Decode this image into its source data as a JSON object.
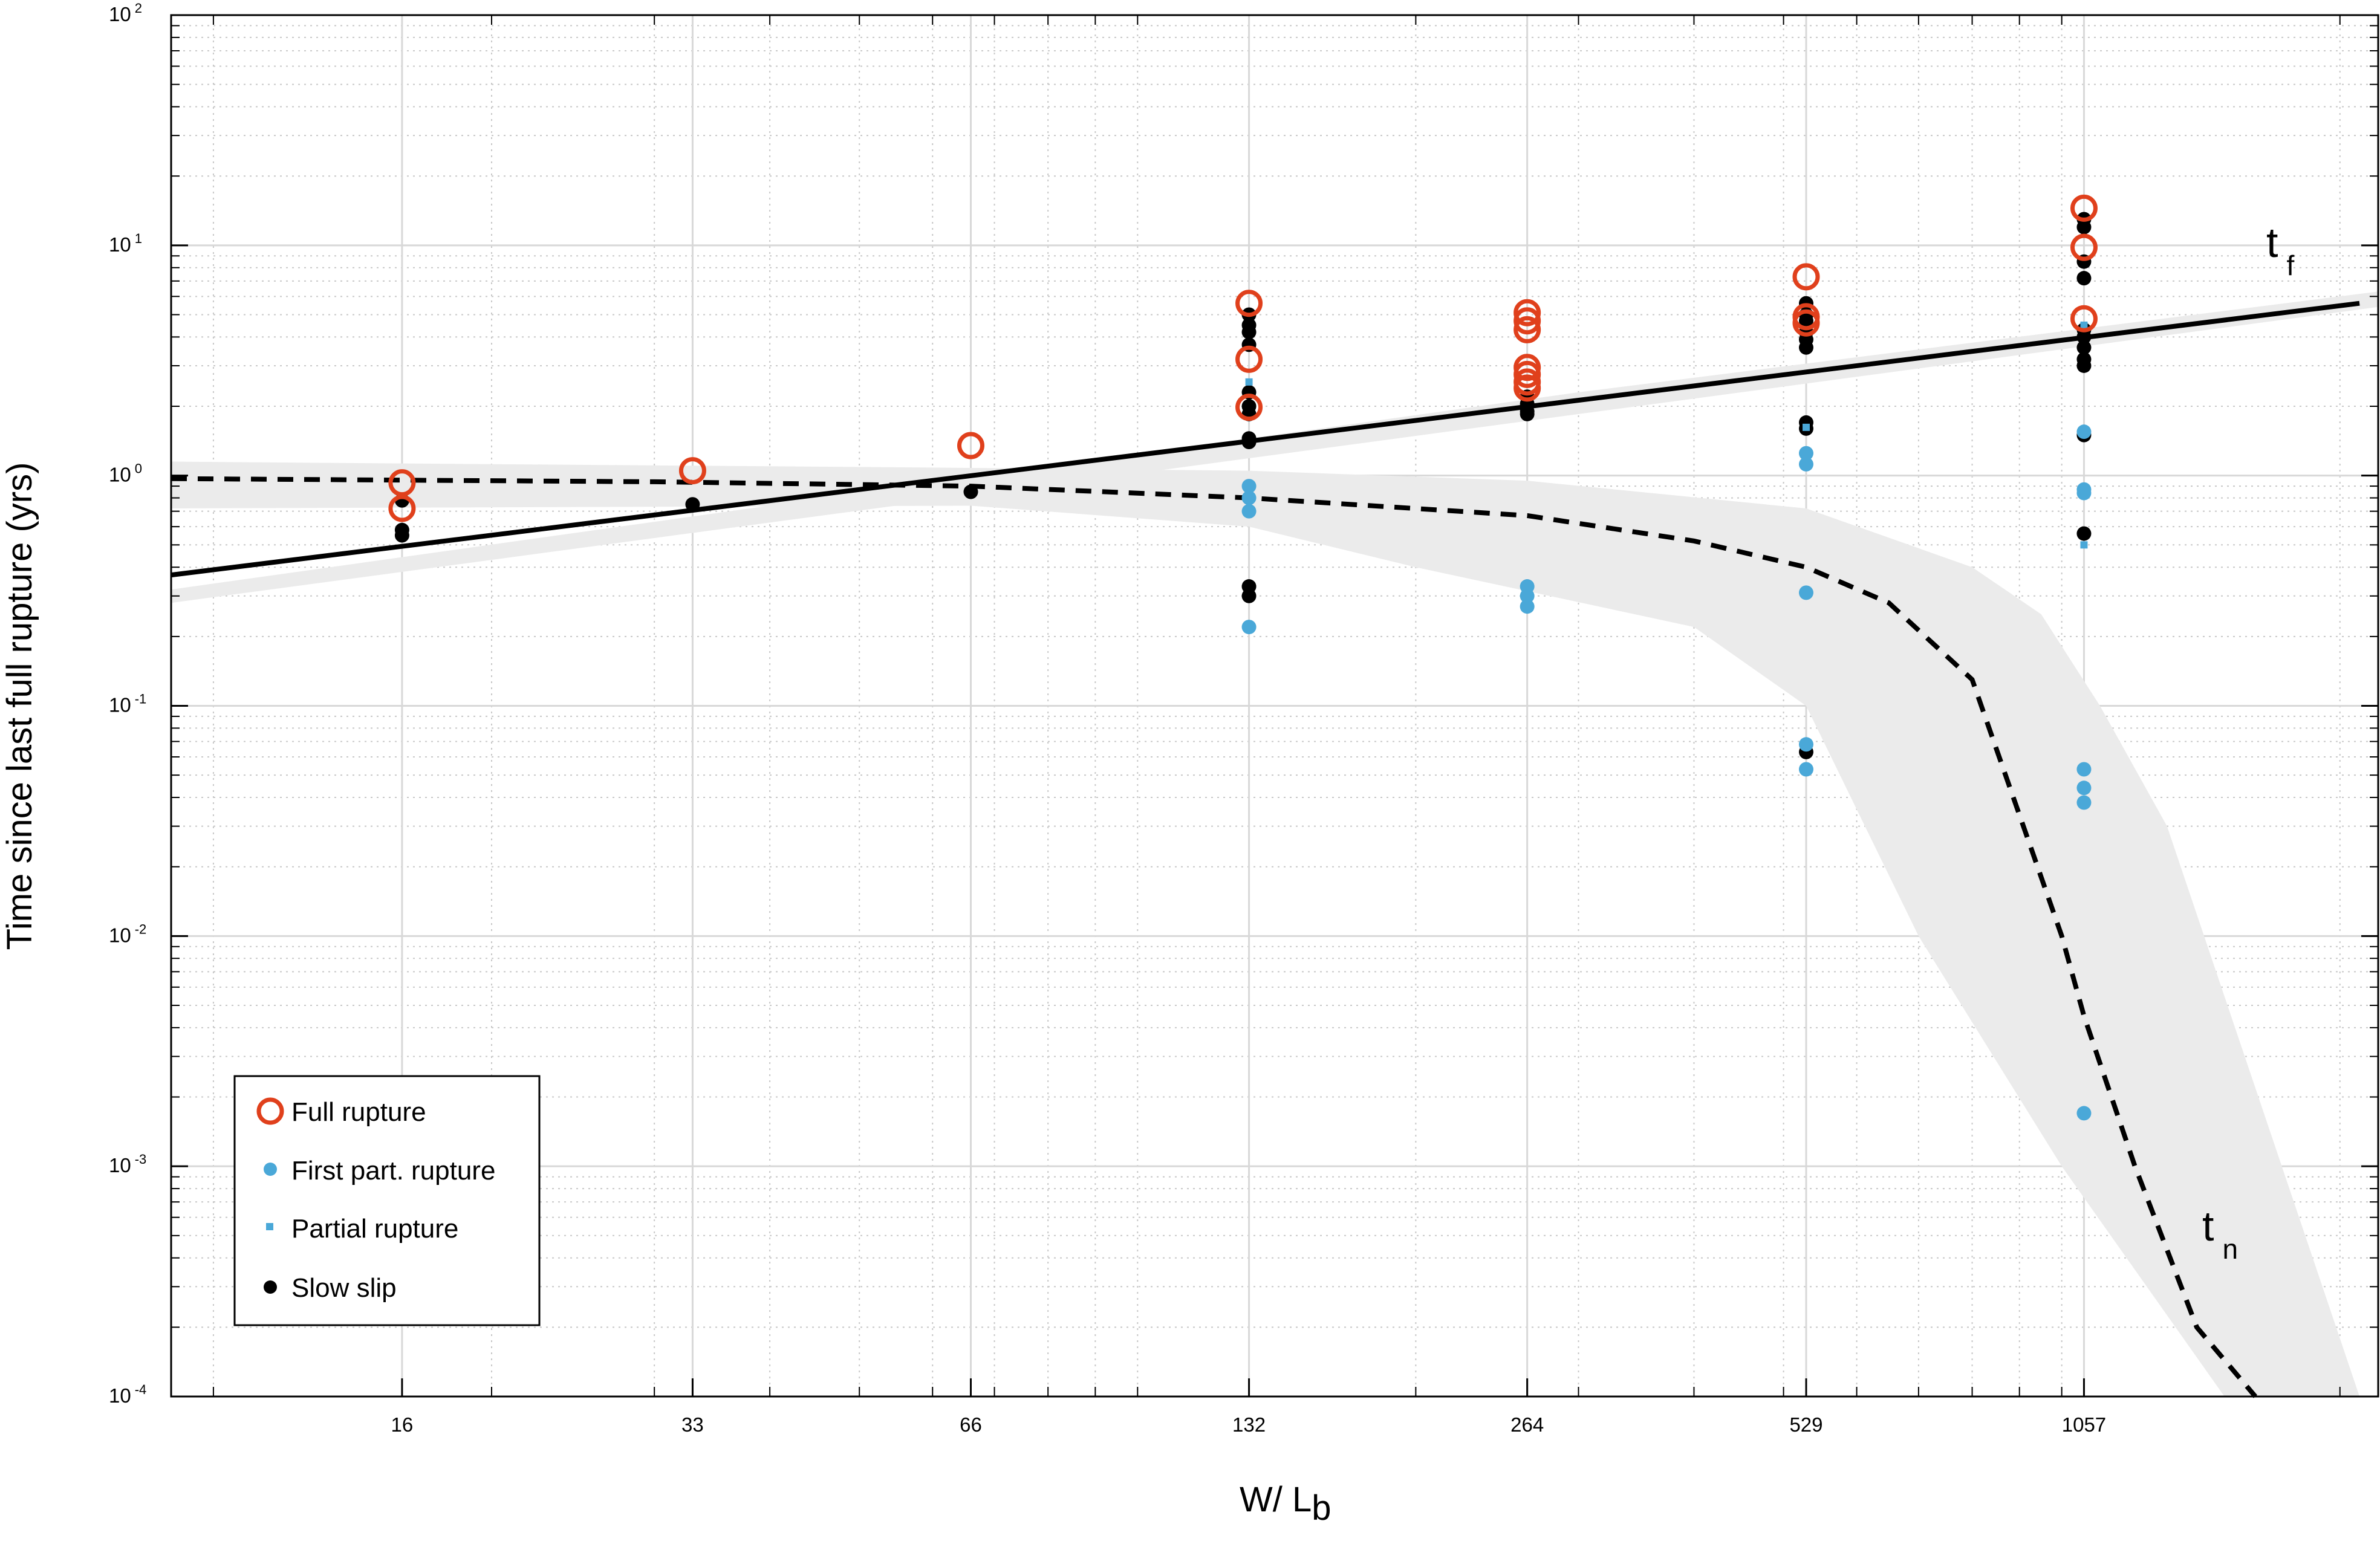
{
  "chart_data": {
    "type": "scatter",
    "title": "",
    "xlabel": "W/ L",
    "xlabel_sub": "b",
    "ylabel": "Time since last full rupture (yrs)",
    "xscale": "log",
    "yscale": "log",
    "xlim": [
      9,
      2200
    ],
    "ylim": [
      0.0001,
      100
    ],
    "grid": true,
    "legend_position": "bottom-left",
    "x_ticks": [
      {
        "value": 16,
        "label": "16"
      },
      {
        "value": 33,
        "label": "33"
      },
      {
        "value": 66,
        "label": "66"
      },
      {
        "value": 132,
        "label": "132"
      },
      {
        "value": 264,
        "label": "264"
      },
      {
        "value": 529,
        "label": "529"
      },
      {
        "value": 1057,
        "label": "1057"
      }
    ],
    "y_ticks": [
      {
        "value": 0.0001,
        "base": "10",
        "exp": "-4"
      },
      {
        "value": 0.001,
        "base": "10",
        "exp": "-3"
      },
      {
        "value": 0.01,
        "base": "10",
        "exp": "-2"
      },
      {
        "value": 0.1,
        "base": "10",
        "exp": "-1"
      },
      {
        "value": 1,
        "base": "10",
        "exp": "0"
      },
      {
        "value": 10,
        "base": "10",
        "exp": "1"
      },
      {
        "value": 100,
        "base": "10",
        "exp": "2"
      }
    ],
    "legend": [
      {
        "key": "full",
        "label": "Full rupture"
      },
      {
        "key": "first",
        "label": "First part. rupture"
      },
      {
        "key": "partial",
        "label": "Partial rupture"
      },
      {
        "key": "slow",
        "label": "Slow slip"
      }
    ],
    "colors": {
      "full": "#e0401c",
      "first": "#4aa8d8",
      "partial": "#4aa8d8",
      "slow": "#000000",
      "band": "#ebebeb"
    },
    "series": [
      {
        "name": "Full rupture",
        "key": "full",
        "marker": "open-circle",
        "points": [
          [
            16,
            0.93
          ],
          [
            16,
            0.72
          ],
          [
            33,
            1.05
          ],
          [
            66,
            1.35
          ],
          [
            132,
            5.6
          ],
          [
            132,
            3.2
          ],
          [
            132,
            1.98
          ],
          [
            264,
            5.1
          ],
          [
            264,
            4.7
          ],
          [
            264,
            4.3
          ],
          [
            264,
            2.95
          ],
          [
            264,
            2.75
          ],
          [
            264,
            2.55
          ],
          [
            264,
            2.4
          ],
          [
            529,
            7.3
          ],
          [
            529,
            4.9
          ],
          [
            529,
            4.6
          ],
          [
            1057,
            14.5
          ],
          [
            1057,
            9.8
          ],
          [
            1057,
            4.8
          ]
        ]
      },
      {
        "name": "First part. rupture",
        "key": "first",
        "marker": "filled-circle",
        "points": [
          [
            132,
            0.9
          ],
          [
            132,
            0.8
          ],
          [
            132,
            0.7
          ],
          [
            132,
            0.22
          ],
          [
            264,
            0.33
          ],
          [
            264,
            0.3
          ],
          [
            264,
            0.27
          ],
          [
            529,
            1.25
          ],
          [
            529,
            1.12
          ],
          [
            529,
            0.31
          ],
          [
            529,
            0.068
          ],
          [
            529,
            0.053
          ],
          [
            1057,
            1.55
          ],
          [
            1057,
            0.87
          ],
          [
            1057,
            0.84
          ],
          [
            1057,
            0.053
          ],
          [
            1057,
            0.044
          ],
          [
            1057,
            0.038
          ],
          [
            1057,
            0.0017
          ]
        ]
      },
      {
        "name": "Partial rupture",
        "key": "partial",
        "marker": "small-square",
        "points": [
          [
            132,
            2.55
          ],
          [
            529,
            1.62
          ],
          [
            1057,
            4.5
          ],
          [
            1057,
            0.5
          ]
        ]
      },
      {
        "name": "Slow slip",
        "key": "slow",
        "marker": "filled-circle",
        "points": [
          [
            16,
            0.78
          ],
          [
            16,
            0.58
          ],
          [
            16,
            0.55
          ],
          [
            33,
            0.75
          ],
          [
            66,
            0.85
          ],
          [
            132,
            5.0
          ],
          [
            132,
            4.5
          ],
          [
            132,
            4.2
          ],
          [
            132,
            3.7
          ],
          [
            132,
            2.3
          ],
          [
            132,
            2.0
          ],
          [
            132,
            1.85
          ],
          [
            132,
            1.45
          ],
          [
            132,
            1.4
          ],
          [
            132,
            0.33
          ],
          [
            132,
            0.3
          ],
          [
            264,
            2.2
          ],
          [
            264,
            2.05
          ],
          [
            264,
            1.9
          ],
          [
            264,
            1.85
          ],
          [
            529,
            5.6
          ],
          [
            529,
            5.0
          ],
          [
            529,
            4.7
          ],
          [
            529,
            4.2
          ],
          [
            529,
            3.9
          ],
          [
            529,
            3.6
          ],
          [
            529,
            1.7
          ],
          [
            529,
            1.6
          ],
          [
            529,
            0.063
          ],
          [
            1057,
            13.0
          ],
          [
            1057,
            12.0
          ],
          [
            1057,
            8.5
          ],
          [
            1057,
            7.2
          ],
          [
            1057,
            4.3
          ],
          [
            1057,
            4.0
          ],
          [
            1057,
            3.6
          ],
          [
            1057,
            3.2
          ],
          [
            1057,
            3.0
          ],
          [
            1057,
            1.5
          ],
          [
            1057,
            0.56
          ]
        ]
      }
    ],
    "curves": [
      {
        "name": "t",
        "sub": "f",
        "style": "solid",
        "points": [
          [
            9,
            0.37
          ],
          [
            2100,
            5.6
          ]
        ],
        "band_upper": [
          [
            9,
            0.32
          ],
          [
            300,
            2.3
          ],
          [
            2200,
            6.3
          ]
        ],
        "band_lower": [
          [
            9,
            0.28
          ],
          [
            300,
            1.85
          ],
          [
            2200,
            5.4
          ]
        ]
      },
      {
        "name": "t",
        "sub": "n",
        "style": "dashed",
        "points": [
          [
            9,
            0.97
          ],
          [
            30,
            0.94
          ],
          [
            66,
            0.9
          ],
          [
            132,
            0.8
          ],
          [
            264,
            0.67
          ],
          [
            400,
            0.52
          ],
          [
            529,
            0.4
          ],
          [
            650,
            0.28
          ],
          [
            800,
            0.13
          ],
          [
            1000,
            0.01
          ],
          [
            1057,
            0.0045
          ],
          [
            1200,
            0.001
          ],
          [
            1400,
            0.0002
          ],
          [
            1620,
            0.0001
          ]
        ],
        "band_upper": [
          [
            9,
            1.15
          ],
          [
            66,
            1.08
          ],
          [
            132,
            1.05
          ],
          [
            264,
            0.95
          ],
          [
            529,
            0.72
          ],
          [
            800,
            0.4
          ],
          [
            950,
            0.25
          ],
          [
            1100,
            0.1
          ],
          [
            1300,
            0.03
          ],
          [
            2100,
            0.0001
          ]
        ],
        "band_lower": [
          [
            9,
            0.72
          ],
          [
            66,
            0.74
          ],
          [
            132,
            0.6
          ],
          [
            200,
            0.4
          ],
          [
            400,
            0.22
          ],
          [
            529,
            0.1
          ],
          [
            700,
            0.01
          ],
          [
            1000,
            0.001
          ],
          [
            1500,
            0.0001
          ]
        ]
      }
    ]
  }
}
